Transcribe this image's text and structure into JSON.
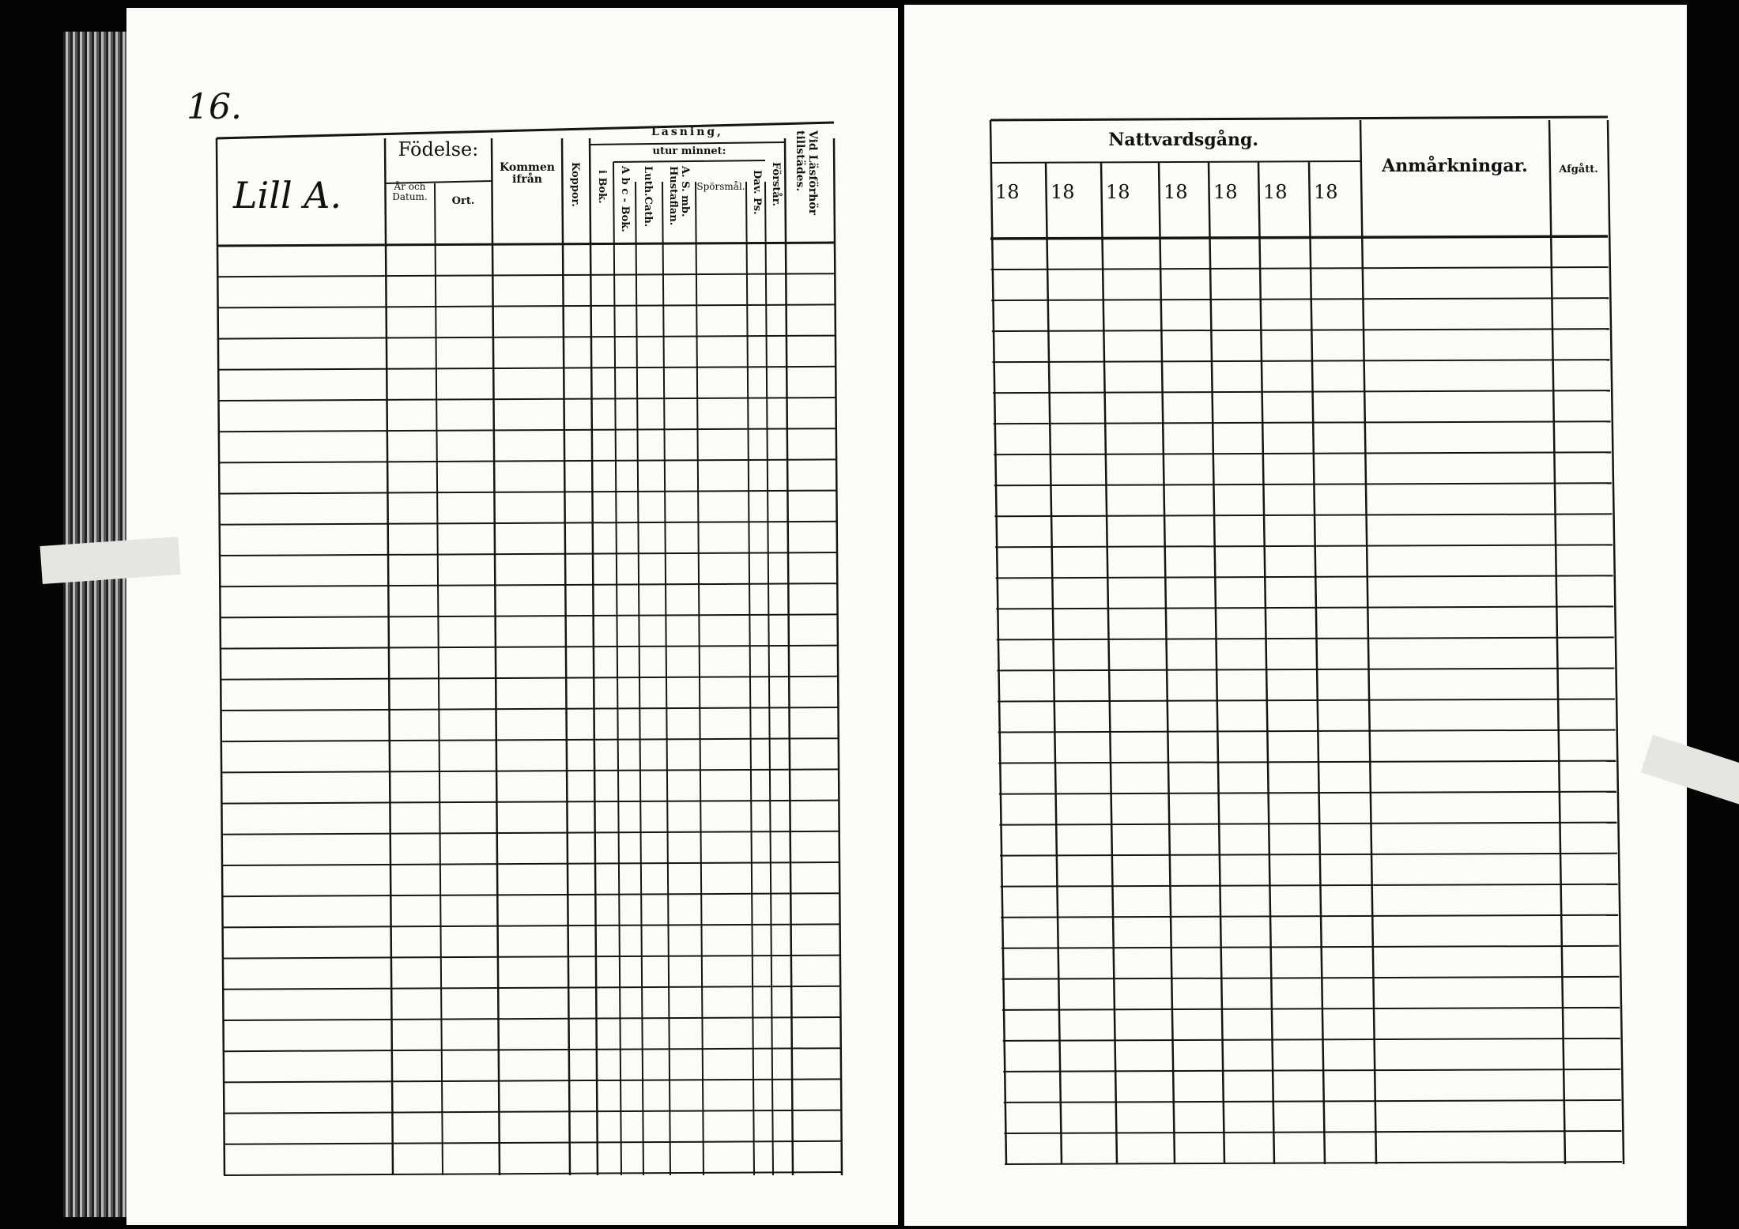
{
  "page_number": "16.",
  "left_table": {
    "name_header": "Lill A.",
    "birth_header": "Födelse:",
    "birth_year_date": "År och Datum.",
    "birth_place": "Ort.",
    "came_from": "Kommen ifrån",
    "smallpox": "Koppor.",
    "reading_header": "Läsning,",
    "from_memory": "utur minnet:",
    "in_book": "i Bok.",
    "abc_book": "A b c - Bok.",
    "luth_cath": "Luth.Cath.",
    "a_smb_hustafla": "A. S. mb. Hustaflan.",
    "questions": "Spörsmål.",
    "dav_ps": "Dav. Ps.",
    "understanding": "Förstår.",
    "attended_catechetical": "Vid Läsförhör tillstädes."
  },
  "right_table": {
    "communion_header": "Nattvardsgång.",
    "year_columns": [
      "18",
      "18",
      "18",
      "18",
      "18",
      "18",
      "18"
    ],
    "remarks": "Anmårkningar.",
    "departed": "Afgått."
  }
}
